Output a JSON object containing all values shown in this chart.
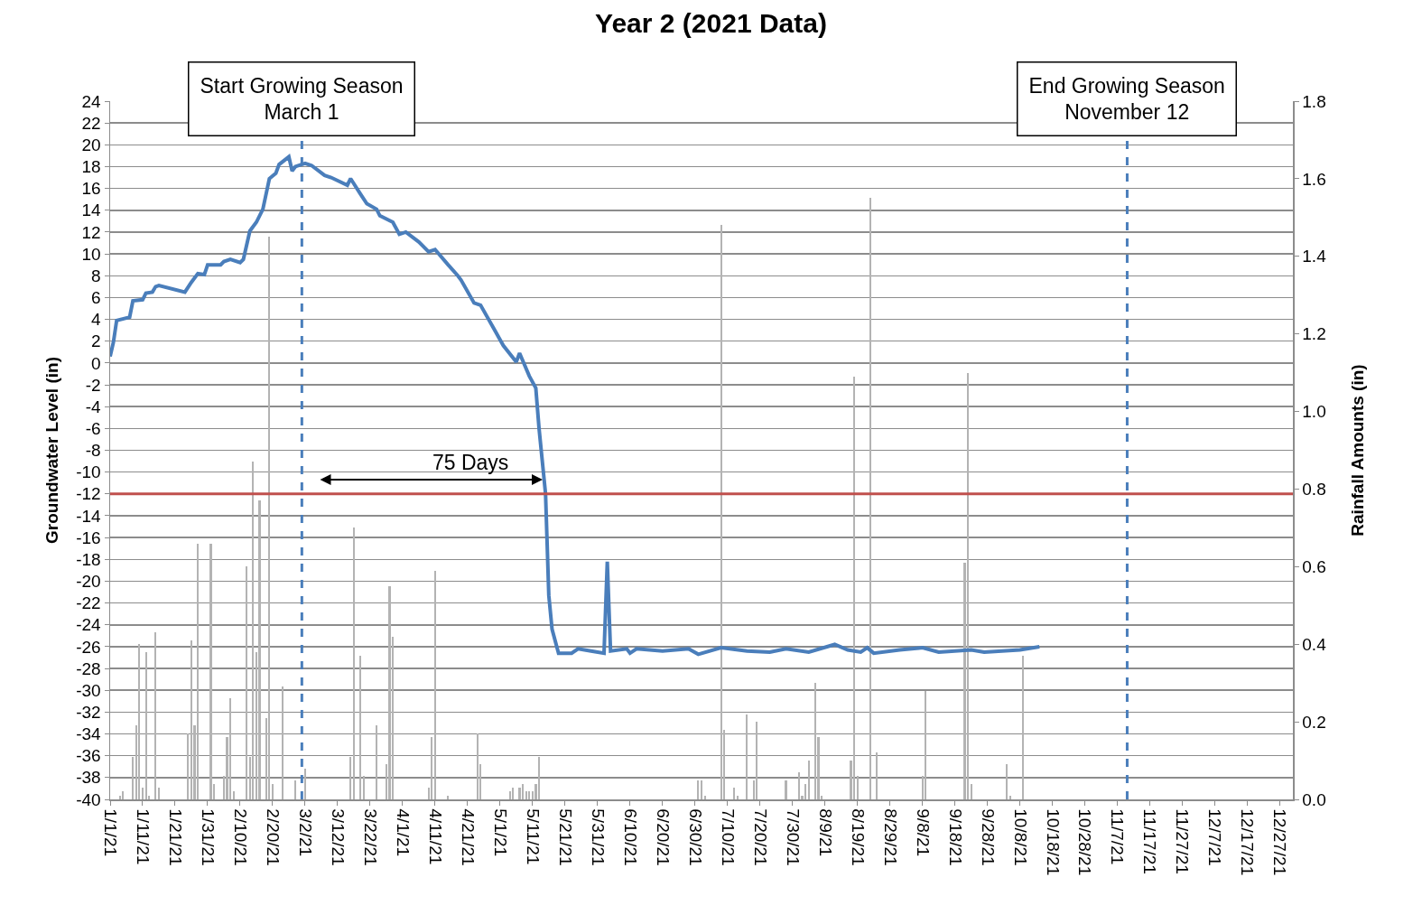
{
  "chart_data": {
    "type": "line",
    "title": "Year 2 (2021 Data)",
    "ylabel": "Groundwater Level (in)",
    "y2label": "Rainfall Amounts (in)",
    "xlim": [
      "2021-01-01",
      "2021-12-31"
    ],
    "xticks": [
      {
        "value": "2021-01-01",
        "label": "1/1/21"
      },
      {
        "value": "2021-01-11",
        "label": "1/11/21"
      },
      {
        "value": "2021-01-21",
        "label": "1/21/21"
      },
      {
        "value": "2021-01-31",
        "label": "1/31/21"
      },
      {
        "value": "2021-02-10",
        "label": "2/10/21"
      },
      {
        "value": "2021-02-20",
        "label": "2/20/21"
      },
      {
        "value": "2021-03-02",
        "label": "3/2/21"
      },
      {
        "value": "2021-03-12",
        "label": "3/12/21"
      },
      {
        "value": "2021-03-22",
        "label": "3/22/21"
      },
      {
        "value": "2021-04-01",
        "label": "4/1/21"
      },
      {
        "value": "2021-04-11",
        "label": "4/11/21"
      },
      {
        "value": "2021-04-21",
        "label": "4/21/21"
      },
      {
        "value": "2021-05-01",
        "label": "5/1/21"
      },
      {
        "value": "2021-05-11",
        "label": "5/11/21"
      },
      {
        "value": "2021-05-21",
        "label": "5/21/21"
      },
      {
        "value": "2021-05-31",
        "label": "5/31/21"
      },
      {
        "value": "2021-06-10",
        "label": "6/10/21"
      },
      {
        "value": "2021-06-20",
        "label": "6/20/21"
      },
      {
        "value": "2021-06-30",
        "label": "6/30/21"
      },
      {
        "value": "2021-07-10",
        "label": "7/10/21"
      },
      {
        "value": "2021-07-20",
        "label": "7/20/21"
      },
      {
        "value": "2021-07-30",
        "label": "7/30/21"
      },
      {
        "value": "2021-08-09",
        "label": "8/9/21"
      },
      {
        "value": "2021-08-19",
        "label": "8/19/21"
      },
      {
        "value": "2021-08-29",
        "label": "8/29/21"
      },
      {
        "value": "2021-09-08",
        "label": "9/8/21"
      },
      {
        "value": "2021-09-18",
        "label": "9/18/21"
      },
      {
        "value": "2021-09-28",
        "label": "9/28/21"
      },
      {
        "value": "2021-10-08",
        "label": "10/8/21"
      },
      {
        "value": "2021-10-18",
        "label": "10/18/21"
      },
      {
        "value": "2021-10-28",
        "label": "10/28/21"
      },
      {
        "value": "2021-11-07",
        "label": "11/7/21"
      },
      {
        "value": "2021-11-17",
        "label": "11/17/21"
      },
      {
        "value": "2021-11-27",
        "label": "11/27/21"
      },
      {
        "value": "2021-12-07",
        "label": "12/7/21"
      },
      {
        "value": "2021-12-17",
        "label": "12/17/21"
      },
      {
        "value": "2021-12-27",
        "label": "12/27/21"
      }
    ],
    "ylim": [
      -40,
      24
    ],
    "yticks": [
      -40,
      -38,
      -36,
      -34,
      -32,
      -30,
      -28,
      -26,
      -24,
      -22,
      -20,
      -18,
      -16,
      -14,
      -12,
      -10,
      -8,
      -6,
      -4,
      -2,
      0,
      2,
      4,
      6,
      8,
      10,
      12,
      14,
      16,
      18,
      20,
      22,
      24
    ],
    "y2lim": [
      0,
      1.8
    ],
    "y2ticks": [
      {
        "value": 0,
        "label": "0.0"
      },
      {
        "value": 0.2,
        "label": "0.2"
      },
      {
        "value": 0.4,
        "label": "0.4"
      },
      {
        "value": 0.6,
        "label": "0.6"
      },
      {
        "value": 0.8,
        "label": "0.8"
      },
      {
        "value": 1.0,
        "label": "1.0"
      },
      {
        "value": 1.2,
        "label": "1.2"
      },
      {
        "value": 1.4,
        "label": "1.4"
      },
      {
        "value": 1.6,
        "label": "1.6"
      },
      {
        "value": 1.8,
        "label": "1.8"
      }
    ],
    "grid": "y",
    "line_style": "solid",
    "series": [
      {
        "type": "bar",
        "axis": "y2",
        "color": "#b3b3b3",
        "x": [
          "2021-01-04",
          "2021-01-05",
          "2021-01-08",
          "2021-01-09",
          "2021-01-10",
          "2021-01-11",
          "2021-01-12",
          "2021-01-13",
          "2021-01-15",
          "2021-01-16",
          "2021-01-25",
          "2021-01-26",
          "2021-01-27",
          "2021-01-28",
          "2021-02-01",
          "2021-02-02",
          "2021-02-05",
          "2021-02-06",
          "2021-02-07",
          "2021-02-08",
          "2021-02-12",
          "2021-02-13",
          "2021-02-14",
          "2021-02-15",
          "2021-02-16",
          "2021-02-18",
          "2021-02-19",
          "2021-02-20",
          "2021-02-23",
          "2021-02-27",
          "2021-03-02",
          "2021-03-16",
          "2021-03-17",
          "2021-03-19",
          "2021-03-20",
          "2021-03-24",
          "2021-03-27",
          "2021-03-28",
          "2021-03-29",
          "2021-04-09",
          "2021-04-10",
          "2021-04-11",
          "2021-04-15",
          "2021-04-24",
          "2021-04-25",
          "2021-05-04",
          "2021-05-05",
          "2021-05-07",
          "2021-05-08",
          "2021-05-09",
          "2021-05-10",
          "2021-05-11",
          "2021-05-12",
          "2021-05-13",
          "2021-07-01",
          "2021-07-02",
          "2021-07-03",
          "2021-07-08",
          "2021-07-09",
          "2021-07-12",
          "2021-07-13",
          "2021-07-16",
          "2021-07-18",
          "2021-07-19",
          "2021-07-28",
          "2021-08-01",
          "2021-08-02",
          "2021-08-03",
          "2021-08-04",
          "2021-08-06",
          "2021-08-07",
          "2021-08-08",
          "2021-08-17",
          "2021-08-18",
          "2021-08-19",
          "2021-08-23",
          "2021-08-25",
          "2021-09-08",
          "2021-09-09",
          "2021-09-21",
          "2021-09-22",
          "2021-09-23",
          "2021-10-04",
          "2021-10-05",
          "2021-10-09"
        ],
        "values": [
          0.01,
          0.02,
          0.11,
          0.19,
          0.4,
          0.03,
          0.38,
          0.01,
          0.43,
          0.03,
          0.17,
          0.41,
          0.19,
          0.66,
          0.66,
          0.04,
          0.06,
          0.16,
          0.26,
          0.02,
          0.6,
          0.11,
          0.87,
          0.38,
          0.77,
          0.21,
          1.45,
          0.04,
          0.29,
          0.05,
          0.08,
          0.11,
          0.7,
          0.37,
          0.06,
          0.19,
          0.09,
          0.55,
          0.42,
          0.03,
          0.16,
          0.59,
          0.01,
          0.17,
          0.09,
          0.02,
          0.03,
          0.03,
          0.04,
          0.02,
          0.02,
          0.02,
          0.04,
          0.11,
          0.05,
          0.05,
          0.01,
          1.48,
          0.18,
          0.03,
          0.01,
          0.22,
          0.05,
          0.2,
          0.05,
          0.07,
          0.01,
          0.04,
          0.1,
          0.3,
          0.16,
          0.01,
          0.1,
          1.09,
          0.06,
          1.55,
          0.12,
          0.06,
          0.28,
          0.61,
          1.1,
          0.04,
          0.09,
          0.01,
          0.37
        ]
      },
      {
        "color": "#4a7ebb",
        "x": [
          "2021-01-01",
          "2021-01-02",
          "2021-01-03",
          "2021-01-07",
          "2021-01-08",
          "2021-01-11",
          "2021-01-12",
          "2021-01-14",
          "2021-01-15",
          "2021-01-16",
          "2021-01-24",
          "2021-01-26",
          "2021-01-28",
          "2021-01-30",
          "2021-01-31",
          "2021-02-04",
          "2021-02-05",
          "2021-02-07",
          "2021-02-10",
          "2021-02-11",
          "2021-02-13",
          "2021-02-15",
          "2021-02-17",
          "2021-02-19",
          "2021-02-21",
          "2021-02-22",
          "2021-02-25",
          "2021-02-26",
          "2021-02-27",
          "2021-03-02",
          "2021-03-04",
          "2021-03-08",
          "2021-03-10",
          "2021-03-15",
          "2021-03-16",
          "2021-03-19",
          "2021-03-21",
          "2021-03-24",
          "2021-03-25",
          "2021-03-29",
          "2021-03-31",
          "2021-04-02",
          "2021-04-06",
          "2021-04-09",
          "2021-04-11",
          "2021-04-15",
          "2021-04-18",
          "2021-04-19",
          "2021-04-23",
          "2021-04-25",
          "2021-04-29",
          "2021-05-02",
          "2021-05-06",
          "2021-05-07",
          "2021-05-10",
          "2021-05-12",
          "2021-05-13",
          "2021-05-15",
          "2021-05-16",
          "2021-05-17",
          "2021-05-19",
          "2021-05-23",
          "2021-05-25",
          "2021-05-29",
          "2021-06-02",
          "2021-06-03",
          "2021-06-04",
          "2021-06-09",
          "2021-06-10",
          "2021-06-12",
          "2021-06-20",
          "2021-06-28",
          "2021-07-01",
          "2021-07-08",
          "2021-07-16",
          "2021-07-23",
          "2021-07-28",
          "2021-08-04",
          "2021-08-12",
          "2021-08-16",
          "2021-08-20",
          "2021-08-22",
          "2021-08-24",
          "2021-09-01",
          "2021-09-08",
          "2021-09-13",
          "2021-09-23",
          "2021-09-27",
          "2021-10-08",
          "2021-10-14"
        ],
        "values": [
          0.6,
          1.9,
          3.9,
          4.2,
          5.7,
          5.8,
          6.4,
          6.5,
          7.0,
          7.1,
          6.5,
          7.4,
          8.2,
          8.1,
          9.0,
          9.0,
          9.3,
          9.5,
          9.2,
          9.5,
          12.1,
          12.9,
          14.1,
          16.9,
          17.4,
          18.2,
          18.9,
          17.6,
          18.0,
          18.3,
          18.1,
          17.2,
          17.0,
          16.3,
          16.9,
          15.5,
          14.6,
          14.1,
          13.5,
          12.9,
          11.8,
          12.0,
          11.1,
          10.2,
          10.4,
          9.0,
          8.0,
          7.6,
          5.5,
          5.3,
          3.2,
          1.6,
          0.1,
          0.9,
          -1.2,
          -2.3,
          -6.0,
          -12.0,
          -21.3,
          -24.4,
          -26.6,
          -26.6,
          -26.2,
          -26.4,
          -26.6,
          -18.2,
          -26.4,
          -26.2,
          -26.6,
          -26.2,
          -26.4,
          -26.2,
          -26.7,
          -26.1,
          -26.4,
          -26.5,
          -26.2,
          -26.5,
          -25.8,
          -26.3,
          -26.5,
          -26.1,
          -26.6,
          -26.3,
          -26.1,
          -26.5,
          -26.3,
          -26.5,
          -26.3,
          -26.0
        ]
      }
    ],
    "ref_lines": [
      {
        "axis": "y",
        "value": -12,
        "color": "#c0504d",
        "line_style": "solid"
      },
      {
        "axis": "x",
        "value": "2021-03-01",
        "label": "Start Growing Season\nMarch 1",
        "color": "#4a7ebb",
        "line_style": "dashed"
      },
      {
        "axis": "x",
        "value": "2021-11-10",
        "label": "End Growing Season\nNovember 12",
        "color": "#4a7ebb",
        "line_style": "dashed"
      }
    ],
    "annotations": [
      "75 Days"
    ]
  }
}
